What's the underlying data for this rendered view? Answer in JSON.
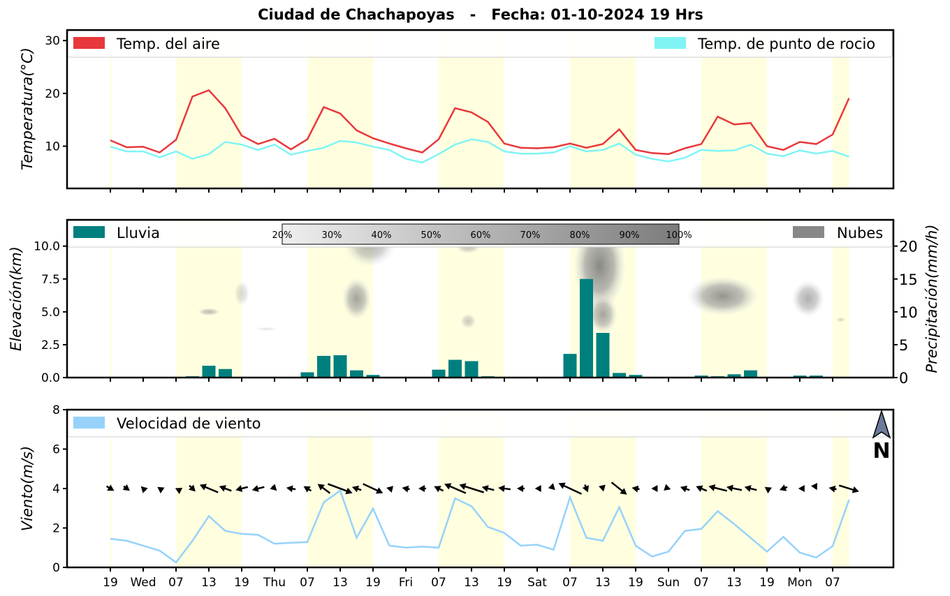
{
  "title": "Ciudad de Chachapoyas   -   Fecha: 01-10-2024 19 Hrs",
  "colors": {
    "temp": "#e8383b",
    "dew": "#80f4f4",
    "rain": "#007f7f",
    "clouds": "#888888",
    "wind": "#96d2fa",
    "daylight": "#ffffe0",
    "north": "#6b7a99"
  },
  "x_tick_labels": [
    "19",
    "Wed",
    "07",
    "13",
    "19",
    "Thu",
    "07",
    "13",
    "19",
    "Fri",
    "07",
    "13",
    "19",
    "Sat",
    "07",
    "13",
    "19",
    "Sun",
    "07",
    "13",
    "19",
    "Mon",
    "07"
  ],
  "daylight_spans": [
    [
      0,
      0.1
    ],
    [
      4,
      8
    ],
    [
      12,
      16
    ],
    [
      20,
      24
    ],
    [
      28,
      32
    ],
    [
      36,
      40
    ],
    [
      44,
      45
    ]
  ],
  "chart_data": [
    {
      "type": "line",
      "x": [
        0,
        1,
        2,
        3,
        4,
        5,
        6,
        7,
        8,
        9,
        10,
        11,
        12,
        13,
        14,
        15,
        16,
        17,
        18,
        19,
        20,
        21,
        22,
        23,
        24,
        25,
        26,
        27,
        28,
        29,
        30,
        31,
        32,
        33,
        34,
        35,
        36,
        37,
        38,
        39,
        40,
        41,
        42,
        43,
        44,
        45
      ],
      "ylabel": "Temperatura(°C)",
      "ylim": [
        2,
        32
      ],
      "yticks": [
        10,
        20,
        30
      ],
      "legend": [
        "top-left",
        "top-right"
      ],
      "series": [
        {
          "name": "Temp. del aire",
          "values": [
            11.1,
            9.8,
            9.9,
            8.8,
            11.2,
            19.4,
            20.6,
            17.2,
            12.0,
            10.4,
            11.4,
            9.4,
            11.3,
            17.4,
            16.2,
            13.0,
            11.5,
            10.5,
            9.6,
            8.8,
            11.3,
            17.2,
            16.4,
            14.6,
            10.5,
            9.7,
            9.6,
            9.8,
            10.5,
            9.7,
            10.4,
            13.2,
            9.3,
            8.7,
            8.5,
            9.6,
            10.4,
            15.6,
            14.1,
            14.4,
            10.0,
            9.3,
            10.8,
            10.4,
            12.2,
            19.1
          ]
        },
        {
          "name": "Temp. de punto de rocio",
          "values": [
            9.9,
            9.0,
            9.0,
            7.9,
            9.0,
            7.6,
            8.5,
            10.8,
            10.3,
            9.3,
            10.3,
            8.4,
            9.1,
            9.7,
            11.0,
            10.7,
            9.9,
            9.3,
            7.6,
            6.9,
            8.5,
            10.3,
            11.3,
            10.8,
            9.0,
            8.6,
            8.6,
            8.8,
            10.0,
            9.0,
            9.3,
            10.5,
            8.4,
            7.6,
            7.1,
            7.8,
            9.3,
            9.1,
            9.2,
            10.3,
            8.6,
            8.1,
            9.2,
            8.6,
            9.1,
            8.0
          ]
        }
      ]
    },
    {
      "type": "bar",
      "x": [
        0,
        1,
        2,
        3,
        4,
        5,
        6,
        7,
        8,
        9,
        10,
        11,
        12,
        13,
        14,
        15,
        16,
        17,
        18,
        19,
        20,
        21,
        22,
        23,
        24,
        25,
        26,
        27,
        28,
        29,
        30,
        31,
        32,
        33,
        34,
        35,
        36,
        37,
        38,
        39,
        40,
        41,
        42,
        43,
        44,
        45
      ],
      "name": "Lluvia",
      "values": [
        0,
        0,
        0,
        0,
        0,
        0.2,
        1.8,
        1.3,
        0,
        0.05,
        0.05,
        0.05,
        0.8,
        3.3,
        3.4,
        1.1,
        0.4,
        0,
        0,
        0,
        1.2,
        2.7,
        2.5,
        0.2,
        0,
        0,
        0,
        0,
        3.6,
        15.0,
        6.8,
        0.7,
        0.4,
        0,
        0,
        0,
        0.3,
        0.2,
        0.5,
        1.1,
        0.05,
        0,
        0.3,
        0.3,
        0.1,
        0
      ],
      "ylabel": "Elevación(km)",
      "ylim": [
        0,
        12
      ],
      "yticks": [
        0.0,
        2.5,
        5.0,
        7.5,
        10.0
      ],
      "y2label": "Precipitación(mm/h)",
      "y2lim": [
        0,
        24
      ],
      "y2ticks": [
        0,
        5,
        10,
        15,
        20
      ],
      "legend": [
        "top-left",
        "top-right"
      ],
      "cloud_legend": "Nubes",
      "colorbar_labels": [
        "20%",
        "30%",
        "40%",
        "50%",
        "60%",
        "70%",
        "80%",
        "90%",
        "100%"
      ],
      "cloud_regions": [
        {
          "x": 6.0,
          "y": 5.0,
          "rx": 0.7,
          "ry": 0.3,
          "level": 0.5
        },
        {
          "x": 8.0,
          "y": 6.4,
          "rx": 0.5,
          "ry": 1.0,
          "level": 0.3
        },
        {
          "x": 9.5,
          "y": 3.7,
          "rx": 0.7,
          "ry": 0.15,
          "level": 0.2
        },
        {
          "x": 15.8,
          "y": 10.2,
          "rx": 1.6,
          "ry": 1.8,
          "level": 0.6
        },
        {
          "x": 15.0,
          "y": 6.0,
          "rx": 0.9,
          "ry": 1.6,
          "level": 0.7
        },
        {
          "x": 21.8,
          "y": 10.0,
          "rx": 0.8,
          "ry": 0.6,
          "level": 0.5
        },
        {
          "x": 21.8,
          "y": 4.3,
          "rx": 0.5,
          "ry": 0.6,
          "level": 0.4
        },
        {
          "x": 29.8,
          "y": 8.5,
          "rx": 1.6,
          "ry": 3.5,
          "level": 0.9
        },
        {
          "x": 30.0,
          "y": 4.8,
          "rx": 0.9,
          "ry": 1.5,
          "level": 0.7
        },
        {
          "x": 37.3,
          "y": 6.2,
          "rx": 2.2,
          "ry": 1.5,
          "level": 0.8
        },
        {
          "x": 42.5,
          "y": 6.0,
          "rx": 1.0,
          "ry": 1.4,
          "level": 0.6
        },
        {
          "x": 44.5,
          "y": 4.4,
          "rx": 0.3,
          "ry": 0.2,
          "level": 0.3
        }
      ]
    },
    {
      "type": "line",
      "x": [
        0,
        1,
        2,
        3,
        4,
        5,
        6,
        7,
        8,
        9,
        10,
        11,
        12,
        13,
        14,
        15,
        16,
        17,
        18,
        19,
        20,
        21,
        22,
        23,
        24,
        25,
        26,
        27,
        28,
        29,
        30,
        31,
        32,
        33,
        34,
        35,
        36,
        37,
        38,
        39,
        40,
        41,
        42,
        43,
        44,
        45
      ],
      "name": "Velocidad de viento",
      "values": [
        1.45,
        1.35,
        1.1,
        0.85,
        0.25,
        1.35,
        2.6,
        1.85,
        1.7,
        1.65,
        1.2,
        1.25,
        1.28,
        3.3,
        3.9,
        1.5,
        2.98,
        1.1,
        1.0,
        1.05,
        1.0,
        3.5,
        3.1,
        2.05,
        1.75,
        1.1,
        1.15,
        0.9,
        3.55,
        1.5,
        1.35,
        3.05,
        1.1,
        0.55,
        0.8,
        1.85,
        1.95,
        2.85,
        2.2,
        1.5,
        0.8,
        1.55,
        0.75,
        0.5,
        1.08,
        3.43
      ],
      "ylabel": "Viento(m/s)",
      "ylim": [
        0,
        8
      ],
      "yticks": [
        0,
        2,
        4,
        6,
        8
      ],
      "legend": "top-left",
      "north_label": "N",
      "arrows_u": [
        0.5,
        0.4,
        -0.3,
        -0.3,
        -0.1,
        0.4,
        -1.2,
        -0.8,
        -0.8,
        -0.8,
        0.3,
        -0.6,
        -0.5,
        -0.8,
        1.6,
        -0.6,
        1.3,
        -0.4,
        -0.5,
        -0.5,
        -0.6,
        -1.4,
        -1.6,
        -0.8,
        -0.8,
        -0.5,
        -0.3,
        0.2,
        -1.5,
        0.2,
        0.1,
        1.0,
        -0.5,
        -0.1,
        0.3,
        -0.6,
        -0.7,
        -1.2,
        -1.0,
        -0.8,
        -0.3,
        -0.5,
        -0.2,
        0.1,
        -0.5,
        1.3
      ],
      "arrows_v": [
        -0.3,
        -0.3,
        0.3,
        0.2,
        0.05,
        -0.4,
        0.5,
        0.3,
        -0.2,
        -0.2,
        -0.3,
        0.1,
        0.3,
        0.6,
        -0.6,
        0.2,
        -0.6,
        0.1,
        0.1,
        0.0,
        0.3,
        0.6,
        0.5,
        0.2,
        0.1,
        0.0,
        0.0,
        -0.2,
        0.7,
        -0.5,
        -0.4,
        -0.8,
        0.1,
        0.0,
        -0.1,
        0.2,
        0.3,
        0.3,
        0.2,
        0.2,
        0.2,
        -0.2,
        0.0,
        -0.2,
        0.1,
        -0.4
      ]
    }
  ]
}
